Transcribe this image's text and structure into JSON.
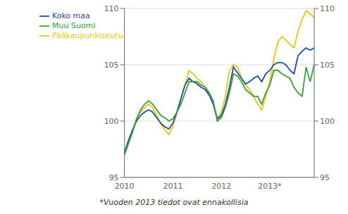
{
  "chart_data": {
    "type": "line",
    "categories": [
      "2010",
      null,
      null,
      null,
      null,
      null,
      null,
      null,
      null,
      null,
      null,
      null,
      "2011",
      null,
      null,
      null,
      null,
      null,
      null,
      null,
      null,
      null,
      null,
      null,
      "2012",
      null,
      null,
      null,
      null,
      null,
      null,
      null,
      null,
      null,
      null,
      null,
      "2013*",
      null,
      null,
      null,
      null,
      null,
      null,
      null,
      null,
      null,
      null,
      null
    ],
    "series": [
      {
        "name": "Pääkaupunkiseutu",
        "color": "#e8c619",
        "values": [
          97.0,
          98.2,
          99.2,
          100.2,
          100.8,
          101.2,
          101.5,
          101.2,
          100.5,
          99.8,
          99.2,
          98.8,
          99.5,
          100.8,
          102.0,
          103.2,
          104.5,
          104.2,
          103.8,
          103.5,
          103.0,
          102.5,
          101.5,
          100.2,
          100.8,
          102.2,
          104.5,
          105.0,
          104.8,
          103.8,
          103.2,
          102.8,
          102.2,
          101.5,
          101.0,
          102.2,
          103.5,
          105.5,
          107.0,
          107.5,
          107.2,
          106.8,
          106.5,
          108.0,
          109.0,
          109.8,
          109.5,
          109.2
        ]
      },
      {
        "name": "Koko maa",
        "color": "#1a4fa0",
        "values": [
          97.2,
          98.3,
          99.2,
          100.0,
          100.5,
          100.8,
          101.0,
          100.8,
          100.3,
          99.8,
          99.5,
          99.3,
          99.8,
          100.8,
          102.0,
          103.2,
          103.8,
          103.5,
          103.3,
          103.0,
          102.8,
          102.3,
          101.5,
          100.2,
          100.5,
          101.5,
          103.0,
          104.8,
          104.3,
          103.8,
          103.3,
          103.5,
          103.8,
          104.0,
          103.5,
          104.2,
          104.5,
          105.0,
          105.2,
          105.2,
          105.0,
          104.5,
          104.2,
          105.8,
          106.2,
          106.5,
          106.3,
          106.5
        ]
      },
      {
        "name": "Muu Suomi",
        "color": "#3a9e3a",
        "values": [
          97.0,
          98.0,
          99.0,
          100.2,
          101.0,
          101.5,
          101.8,
          101.5,
          101.0,
          100.5,
          100.3,
          100.0,
          100.2,
          100.8,
          101.5,
          102.5,
          103.5,
          103.5,
          103.5,
          103.2,
          103.0,
          102.5,
          101.8,
          100.0,
          100.3,
          101.2,
          102.5,
          104.2,
          104.0,
          103.5,
          102.8,
          102.5,
          102.2,
          102.2,
          101.5,
          102.5,
          103.2,
          104.5,
          104.5,
          104.2,
          104.0,
          103.8,
          103.0,
          102.5,
          102.2,
          104.8,
          103.5,
          105.0
        ]
      }
    ],
    "ylim": [
      95,
      110
    ],
    "yticks": [
      95,
      100,
      105,
      110
    ],
    "y2lim": [
      95,
      110
    ],
    "y2ticks": [
      95,
      100,
      105,
      110
    ],
    "grid": true,
    "legend": "upper left",
    "annotations": [
      "*Vuoden 2013 tiedot ovat ennakollisia"
    ]
  }
}
